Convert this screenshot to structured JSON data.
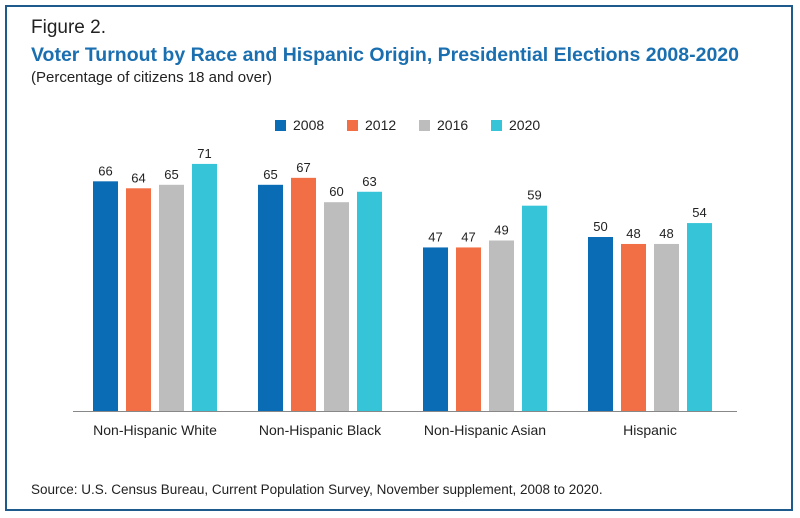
{
  "figure_label": "Figure 2.",
  "source": "Source: U.S. Census Bureau, Current Population Survey, November supplement, 2008 to 2020.",
  "chart_data": {
    "type": "bar",
    "title": "Voter Turnout by Race and Hispanic Origin, Presidential Elections 2008-2020",
    "subtitle": "(Percentage of citizens 18 and over)",
    "xlabel": "",
    "ylabel": "",
    "ylim": [
      0,
      75
    ],
    "grid": false,
    "legend_position": "top-center",
    "categories": [
      "Non-Hispanic White",
      "Non-Hispanic Black",
      "Non-Hispanic Asian",
      "Hispanic"
    ],
    "series": [
      {
        "name": "2008",
        "color": "#0a6cb5",
        "values": [
          66,
          65,
          47,
          50
        ]
      },
      {
        "name": "2012",
        "color": "#f26f46",
        "values": [
          64,
          67,
          47,
          48
        ]
      },
      {
        "name": "2016",
        "color": "#bdbdbd",
        "values": [
          65,
          60,
          49,
          48
        ]
      },
      {
        "name": "2020",
        "color": "#36c4d8",
        "values": [
          71,
          63,
          59,
          54
        ]
      }
    ]
  }
}
